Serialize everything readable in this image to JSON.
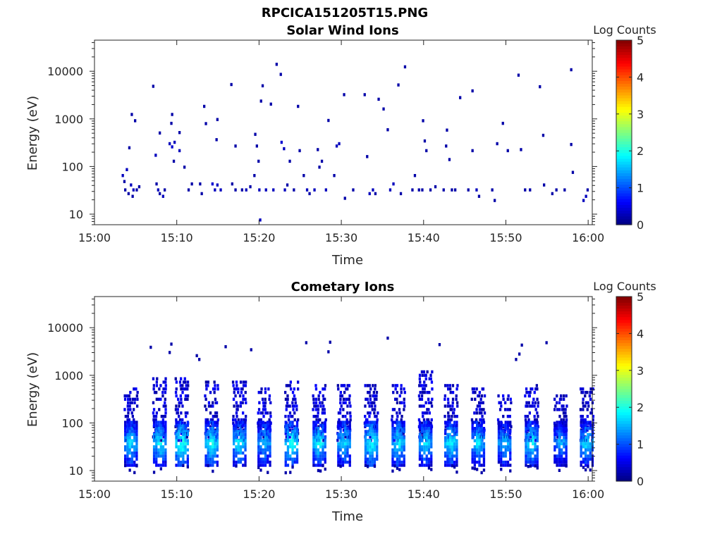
{
  "figure": {
    "title": "RPCICA151205T15.PNG"
  },
  "chart_data": [
    {
      "type": "heatmap",
      "title": "Solar Wind Ions",
      "xlabel": "Time",
      "ylabel": "Energy (eV)",
      "x_ticks": [
        "15:00",
        "15:10",
        "15:20",
        "15:30",
        "15:40",
        "15:50",
        "16:00"
      ],
      "x_range_minutes": [
        0,
        60.5
      ],
      "y_scale": "log",
      "y_ticks": [
        "10",
        "100",
        "1000",
        "10000"
      ],
      "ylim": [
        6,
        45000
      ],
      "colorbar": {
        "label": "Log Counts",
        "ticks": [
          "0",
          "1",
          "2",
          "3",
          "4",
          "5"
        ],
        "range": [
          0,
          5
        ],
        "colormap": "jet"
      },
      "cells": [
        [
          3.3,
          60,
          0.3
        ],
        [
          3.5,
          45,
          0.2
        ],
        [
          3.6,
          30,
          0.2
        ],
        [
          3.8,
          80,
          0.3
        ],
        [
          4.0,
          25,
          0.2
        ],
        [
          4.3,
          38,
          0.3
        ],
        [
          4.5,
          22,
          0.2
        ],
        [
          4.6,
          30,
          0.3
        ],
        [
          5.0,
          30,
          0.2
        ],
        [
          5.3,
          35,
          0.2
        ],
        [
          4.1,
          230,
          0.2
        ],
        [
          4.4,
          1150,
          0.2
        ],
        [
          4.8,
          850,
          0.2
        ],
        [
          7.0,
          4500,
          0.2
        ],
        [
          7.4,
          40,
          0.2
        ],
        [
          7.6,
          30,
          0.3
        ],
        [
          7.8,
          25,
          0.2
        ],
        [
          8.2,
          22,
          0.3
        ],
        [
          8.4,
          30,
          0.2
        ],
        [
          7.3,
          160,
          0.3
        ],
        [
          7.8,
          470,
          0.2
        ],
        [
          9.0,
          280,
          0.3
        ],
        [
          9.3,
          240,
          0.4
        ],
        [
          9.6,
          300,
          0.3
        ],
        [
          10.2,
          200,
          0.3
        ],
        [
          9.5,
          120,
          0.2
        ],
        [
          10.8,
          90,
          0.2
        ],
        [
          9.2,
          750,
          0.2
        ],
        [
          9.3,
          1150,
          0.2
        ],
        [
          10.2,
          480,
          0.2
        ],
        [
          11.3,
          30,
          0.2
        ],
        [
          11.7,
          40,
          0.2
        ],
        [
          12.9,
          25,
          0.2
        ],
        [
          12.7,
          40,
          0.2
        ],
        [
          13.2,
          1700,
          0.2
        ],
        [
          13.4,
          740,
          0.2
        ],
        [
          14.2,
          40,
          0.4
        ],
        [
          14.5,
          30,
          0.3
        ],
        [
          14.8,
          38,
          0.3
        ],
        [
          15.2,
          30,
          0.3
        ],
        [
          14.7,
          340,
          0.2
        ],
        [
          14.8,
          900,
          0.2
        ],
        [
          16.5,
          4900,
          0.2
        ],
        [
          16.6,
          40,
          0.2
        ],
        [
          17.0,
          250,
          0.2
        ],
        [
          17.0,
          30,
          0.2
        ],
        [
          17.8,
          30,
          0.2
        ],
        [
          18.3,
          30,
          0.3
        ],
        [
          18.8,
          35,
          0.2
        ],
        [
          19.3,
          60,
          0.2
        ],
        [
          19.6,
          250,
          0.2
        ],
        [
          19.4,
          440,
          0.2
        ],
        [
          19.8,
          120,
          0.2
        ],
        [
          19.9,
          30,
          0.3
        ],
        [
          20.0,
          7,
          0.3
        ],
        [
          20.1,
          2200,
          0.2
        ],
        [
          20.3,
          4600,
          0.2
        ],
        [
          20.7,
          30,
          0.3
        ],
        [
          21.3,
          1900,
          0.2
        ],
        [
          21.6,
          30,
          0.3
        ],
        [
          22.0,
          13000,
          0.2
        ],
        [
          22.5,
          8000,
          0.2
        ],
        [
          22.6,
          300,
          0.4
        ],
        [
          22.9,
          220,
          0.3
        ],
        [
          23.0,
          30,
          0.3
        ],
        [
          23.3,
          38,
          0.2
        ],
        [
          23.6,
          120,
          0.2
        ],
        [
          24.1,
          30,
          0.2
        ],
        [
          24.6,
          1700,
          0.2
        ],
        [
          24.8,
          200,
          0.2
        ],
        [
          25.3,
          60,
          0.2
        ],
        [
          25.7,
          30,
          0.3
        ],
        [
          26.0,
          25,
          0.2
        ],
        [
          26.6,
          30,
          0.3
        ],
        [
          27.0,
          210,
          0.2
        ],
        [
          27.2,
          90,
          0.2
        ],
        [
          27.5,
          120,
          0.2
        ],
        [
          28.0,
          30,
          0.3
        ],
        [
          28.3,
          860,
          0.2
        ],
        [
          29.0,
          60,
          0.2
        ],
        [
          29.3,
          250,
          0.3
        ],
        [
          29.6,
          280,
          0.3
        ],
        [
          30.2,
          3000,
          0.2
        ],
        [
          30.3,
          20,
          0.2
        ],
        [
          31.3,
          30,
          0.2
        ],
        [
          32.7,
          3000,
          0.2
        ],
        [
          33.0,
          150,
          0.2
        ],
        [
          33.3,
          25,
          0.3
        ],
        [
          33.7,
          30,
          0.3
        ],
        [
          34.0,
          25,
          0.2
        ],
        [
          34.4,
          2400,
          0.2
        ],
        [
          35.0,
          1500,
          0.2
        ],
        [
          35.5,
          550,
          0.2
        ],
        [
          35.8,
          30,
          0.3
        ],
        [
          36.2,
          40,
          0.3
        ],
        [
          36.8,
          4800,
          0.2
        ],
        [
          37.1,
          25,
          0.2
        ],
        [
          37.6,
          11500,
          0.2
        ],
        [
          38.5,
          30,
          0.2
        ],
        [
          38.8,
          60,
          0.2
        ],
        [
          39.3,
          30,
          0.2
        ],
        [
          39.7,
          30,
          0.2
        ],
        [
          39.8,
          850,
          0.2
        ],
        [
          40.0,
          320,
          0.2
        ],
        [
          40.2,
          200,
          0.2
        ],
        [
          40.7,
          30,
          0.2
        ],
        [
          41.3,
          35,
          0.2
        ],
        [
          42.3,
          30,
          0.2
        ],
        [
          42.6,
          250,
          0.2
        ],
        [
          42.7,
          540,
          0.2
        ],
        [
          43.0,
          130,
          0.2
        ],
        [
          43.3,
          30,
          0.2
        ],
        [
          43.7,
          30,
          0.2
        ],
        [
          44.3,
          2600,
          0.2
        ],
        [
          45.3,
          30,
          0.2
        ],
        [
          45.8,
          3600,
          0.2
        ],
        [
          45.8,
          200,
          0.2
        ],
        [
          46.3,
          30,
          0.3
        ],
        [
          46.6,
          22,
          0.2
        ],
        [
          48.2,
          30,
          0.2
        ],
        [
          48.5,
          18,
          0.2
        ],
        [
          48.8,
          280,
          0.2
        ],
        [
          49.5,
          750,
          0.2
        ],
        [
          50.1,
          200,
          0.2
        ],
        [
          51.4,
          7700,
          0.2
        ],
        [
          51.7,
          210,
          0.2
        ],
        [
          52.2,
          30,
          0.2
        ],
        [
          52.8,
          30,
          0.2
        ],
        [
          54.0,
          4400,
          0.2
        ],
        [
          54.4,
          420,
          0.2
        ],
        [
          54.5,
          38,
          0.2
        ],
        [
          55.5,
          25,
          0.2
        ],
        [
          56.0,
          30,
          0.2
        ],
        [
          57.0,
          30,
          0.2
        ],
        [
          57.8,
          10000,
          0.2
        ],
        [
          57.8,
          270,
          0.2
        ],
        [
          58.0,
          70,
          0.2
        ],
        [
          59.3,
          18,
          0.3
        ],
        [
          59.6,
          22,
          0.3
        ],
        [
          59.8,
          30,
          0.2
        ]
      ]
    },
    {
      "type": "heatmap",
      "title": "Cometary Ions",
      "xlabel": "Time",
      "ylabel": "Energy (eV)",
      "x_ticks": [
        "15:00",
        "15:10",
        "15:20",
        "15:30",
        "15:40",
        "15:50",
        "16:00"
      ],
      "x_range_minutes": [
        0,
        60.5
      ],
      "y_scale": "log",
      "y_ticks": [
        "10",
        "100",
        "1000",
        "10000"
      ],
      "ylim": [
        6,
        45000
      ],
      "colorbar": {
        "label": "Log Counts",
        "ticks": [
          "0",
          "1",
          "2",
          "3",
          "4",
          "5"
        ],
        "range": [
          0,
          5
        ],
        "colormap": "jet"
      },
      "bursts": [
        {
          "t": 3.8,
          "peak": 1.8,
          "width": 1.6,
          "upper_energy": 500
        },
        {
          "t": 7.3,
          "peak": 1.9,
          "width": 1.4,
          "upper_energy": 800
        },
        {
          "t": 10.0,
          "peak": 2.1,
          "width": 1.9,
          "upper_energy": 900
        },
        {
          "t": 13.6,
          "peak": 2.0,
          "width": 1.7,
          "upper_energy": 700
        },
        {
          "t": 17.0,
          "peak": 1.9,
          "width": 1.6,
          "upper_energy": 700
        },
        {
          "t": 20.0,
          "peak": 1.7,
          "width": 1.5,
          "upper_energy": 500
        },
        {
          "t": 23.3,
          "peak": 2.0,
          "width": 1.9,
          "upper_energy": 700
        },
        {
          "t": 26.7,
          "peak": 1.9,
          "width": 1.8,
          "upper_energy": 650
        },
        {
          "t": 29.7,
          "peak": 1.8,
          "width": 1.5,
          "upper_energy": 600
        },
        {
          "t": 33.0,
          "peak": 2.0,
          "width": 1.9,
          "upper_energy": 600
        },
        {
          "t": 36.3,
          "peak": 1.9,
          "width": 1.8,
          "upper_energy": 650
        },
        {
          "t": 39.6,
          "peak": 1.8,
          "width": 1.6,
          "upper_energy": 1100
        },
        {
          "t": 42.7,
          "peak": 1.9,
          "width": 1.7,
          "upper_energy": 650
        },
        {
          "t": 46.0,
          "peak": 1.8,
          "width": 1.5,
          "upper_energy": 500
        },
        {
          "t": 49.2,
          "peak": 1.7,
          "width": 1.4,
          "upper_energy": 400
        },
        {
          "t": 52.5,
          "peak": 1.9,
          "width": 1.8,
          "upper_energy": 600
        },
        {
          "t": 56.0,
          "peak": 1.6,
          "width": 1.3,
          "upper_energy": 400
        },
        {
          "t": 59.2,
          "peak": 1.8,
          "width": 1.5,
          "upper_energy": 500
        }
      ],
      "scattered_points": [
        [
          6.7,
          3600
        ],
        [
          9.2,
          4200
        ],
        [
          9.0,
          2800
        ],
        [
          12.3,
          2400
        ],
        [
          12.6,
          2000
        ],
        [
          15.8,
          3700
        ],
        [
          18.9,
          3200
        ],
        [
          25.6,
          4500
        ],
        [
          28.5,
          4600
        ],
        [
          28.3,
          2900
        ],
        [
          35.5,
          5600
        ],
        [
          41.8,
          4100
        ],
        [
          51.1,
          2000
        ],
        [
          51.5,
          2600
        ],
        [
          51.8,
          4000
        ],
        [
          54.8,
          4500
        ]
      ]
    }
  ]
}
